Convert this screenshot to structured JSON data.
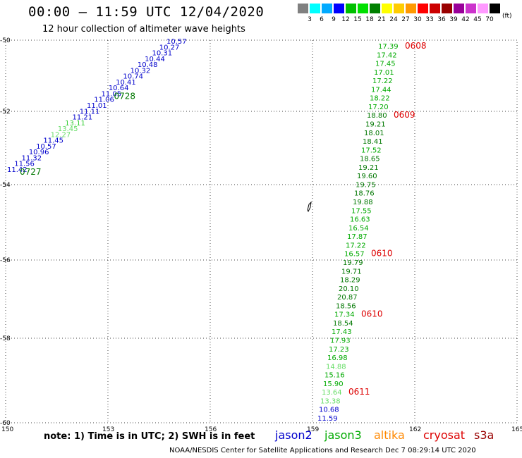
{
  "header": {
    "title": "00:00 – 11:59 UTC 12/04/2020",
    "subtitle": "12 hour collection of altimeter wave heights"
  },
  "colorbar": {
    "colors": [
      "#808080",
      "#00ffff",
      "#00aaff",
      "#0000ff",
      "#00c000",
      "#00e000",
      "#008000",
      "#ffff00",
      "#ffcc00",
      "#ff9900",
      "#ff0000",
      "#cc0000",
      "#990000",
      "#990099",
      "#cc33cc",
      "#ff99ff",
      "#000000"
    ],
    "labels": [
      "3",
      "6",
      "9",
      "12",
      "15",
      "18",
      "21",
      "24",
      "27",
      "30",
      "33",
      "36",
      "39",
      "42",
      "45",
      "70"
    ],
    "unit": "(ft)"
  },
  "map": {
    "lon_range": [
      150,
      165
    ],
    "lat_range": [
      -50,
      -60
    ],
    "x_ticks": [
      "150",
      "153",
      "156",
      "159",
      "162",
      "165"
    ],
    "y_ticks": [
      "-50",
      "-52",
      "-54",
      "-56",
      "-58",
      "-60"
    ]
  },
  "tracks": [
    {
      "id": "west",
      "points": [
        {
          "v": "10.57",
          "c": "#0000cc"
        },
        {
          "v": "10.27",
          "c": "#0000cc"
        },
        {
          "v": "10.31",
          "c": "#0000cc"
        },
        {
          "v": "10.44",
          "c": "#0000cc"
        },
        {
          "v": "10.48",
          "c": "#0000cc"
        },
        {
          "v": "10.32",
          "c": "#0000cc"
        },
        {
          "v": "10.74",
          "c": "#0000cc"
        },
        {
          "v": "10.41",
          "c": "#0000cc"
        },
        {
          "v": "10.64",
          "c": "#0000cc"
        },
        {
          "v": "11.05",
          "c": "#0000cc"
        },
        {
          "v": "11.06",
          "c": "#0000cc"
        },
        {
          "v": "11.01",
          "c": "#0000cc"
        },
        {
          "v": "11.11",
          "c": "#0000cc"
        },
        {
          "v": "11.21",
          "c": "#0000cc"
        },
        {
          "v": "13.11",
          "c": "#33cc33"
        },
        {
          "v": "13.45",
          "c": "#66dd66"
        },
        {
          "v": "12.27",
          "c": "#66dd66"
        },
        {
          "v": "11.45",
          "c": "#0000cc"
        },
        {
          "v": "10.57",
          "c": "#0000cc"
        },
        {
          "v": "10.96",
          "c": "#0000cc"
        },
        {
          "v": "11.32",
          "c": "#0000cc"
        },
        {
          "v": "11.56",
          "c": "#0000cc"
        },
        {
          "v": "11.42",
          "c": "#0000cc"
        }
      ],
      "times": [
        {
          "t": "0728",
          "c": "#007700",
          "i": 9
        },
        {
          "t": "0727",
          "c": "#007700",
          "i": 22
        }
      ]
    },
    {
      "id": "east",
      "points": [
        {
          "v": "17.39",
          "c": "#00aa00"
        },
        {
          "v": "17.42",
          "c": "#00aa00"
        },
        {
          "v": "17.45",
          "c": "#00aa00"
        },
        {
          "v": "17.01",
          "c": "#00aa00"
        },
        {
          "v": "17.22",
          "c": "#00aa00"
        },
        {
          "v": "17.44",
          "c": "#00aa00"
        },
        {
          "v": "18.22",
          "c": "#00aa00"
        },
        {
          "v": "17.20",
          "c": "#00aa00"
        },
        {
          "v": "18.80",
          "c": "#007700"
        },
        {
          "v": "19.21",
          "c": "#007700"
        },
        {
          "v": "18.01",
          "c": "#007700"
        },
        {
          "v": "18.41",
          "c": "#007700"
        },
        {
          "v": "17.52",
          "c": "#00aa00"
        },
        {
          "v": "18.65",
          "c": "#007700"
        },
        {
          "v": "19.21",
          "c": "#007700"
        },
        {
          "v": "19.60",
          "c": "#007700"
        },
        {
          "v": "19.75",
          "c": "#007700"
        },
        {
          "v": "18.76",
          "c": "#007700"
        },
        {
          "v": "19.88",
          "c": "#007700"
        },
        {
          "v": "17.55",
          "c": "#00aa00"
        },
        {
          "v": "16.63",
          "c": "#00aa00"
        },
        {
          "v": "16.54",
          "c": "#00aa00"
        },
        {
          "v": "17.87",
          "c": "#00aa00"
        },
        {
          "v": "17.22",
          "c": "#00aa00"
        },
        {
          "v": "16.57",
          "c": "#00aa00"
        },
        {
          "v": "19.79",
          "c": "#007700"
        },
        {
          "v": "19.71",
          "c": "#007700"
        },
        {
          "v": "18.29",
          "c": "#007700"
        },
        {
          "v": "20.10",
          "c": "#007700"
        },
        {
          "v": "20.87",
          "c": "#007700"
        },
        {
          "v": "18.56",
          "c": "#007700"
        },
        {
          "v": "17.34",
          "c": "#00aa00"
        },
        {
          "v": "18.54",
          "c": "#007700"
        },
        {
          "v": "17.43",
          "c": "#00aa00"
        },
        {
          "v": "17.93",
          "c": "#00aa00"
        },
        {
          "v": "17.23",
          "c": "#00aa00"
        },
        {
          "v": "16.98",
          "c": "#00aa00"
        },
        {
          "v": "14.88",
          "c": "#66dd66"
        },
        {
          "v": "15.16",
          "c": "#00aa00"
        },
        {
          "v": "15.90",
          "c": "#00aa00"
        },
        {
          "v": "13.64",
          "c": "#66dd66"
        },
        {
          "v": "13.38",
          "c": "#66dd66"
        },
        {
          "v": "10.68",
          "c": "#0000cc"
        },
        {
          "v": "11.59",
          "c": "#0000cc"
        }
      ],
      "times": [
        {
          "t": "0608",
          "c": "#dd0000",
          "i": 0
        },
        {
          "t": "0609",
          "c": "#dd0000",
          "i": 8
        },
        {
          "t": "0610",
          "c": "#dd0000",
          "i": 24
        },
        {
          "t": "0610",
          "c": "#dd0000",
          "i": 31
        },
        {
          "t": "0611",
          "c": "#dd0000",
          "i": 40
        }
      ]
    }
  ],
  "footer": {
    "note": "note:  1) Time is in UTC;  2) SWH is in feet",
    "satellites": [
      {
        "name": "jason2",
        "color": "#0000cc"
      },
      {
        "name": "jason3",
        "color": "#00aa00"
      },
      {
        "name": "altika",
        "color": "#ff8800"
      },
      {
        "name": "cryosat",
        "color": "#dd0000"
      },
      {
        "name": "s3a",
        "color": "#990000"
      }
    ],
    "credit": "NOAA/NESDIS Center for Satellite Applications and Research     Dec  7 08:29:14 UTC 2020"
  }
}
